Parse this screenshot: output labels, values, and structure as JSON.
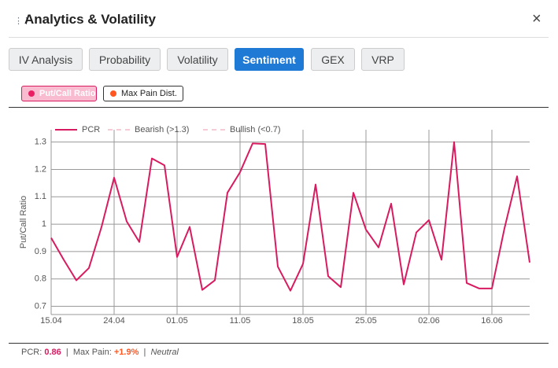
{
  "header": {
    "title": "Analytics & Volatility",
    "close": "×"
  },
  "tabs": [
    "IV Analysis",
    "Probability",
    "Volatility",
    "Sentiment",
    "GEX",
    "VRP"
  ],
  "active_tab": 3,
  "toggles": [
    {
      "label": "Put/Call Ratio",
      "color": "#e91e63",
      "active": true
    },
    {
      "label": "Max Pain Dist.",
      "color": "#ff5722",
      "active": false
    }
  ],
  "chart_data": {
    "type": "line",
    "y_label": "Put/Call Ratio",
    "categories": [
      "15.04",
      null,
      null,
      null,
      null,
      "24.04",
      null,
      null,
      null,
      null,
      "01.05",
      null,
      null,
      null,
      null,
      "11.05",
      null,
      null,
      null,
      null,
      "18.05",
      null,
      null,
      null,
      null,
      "25.05",
      null,
      null,
      null,
      null,
      "02.06",
      null,
      null,
      null,
      null,
      "16.06",
      null,
      null,
      null
    ],
    "series": [
      {
        "name": "PCR",
        "color": "#d81b60",
        "values": [
          0.95,
          0.87,
          0.795,
          0.84,
          0.99,
          1.17,
          1.01,
          0.935,
          1.24,
          1.215,
          0.88,
          0.99,
          0.76,
          0.795,
          1.115,
          1.19,
          1.295,
          1.293,
          0.845,
          0.757,
          0.855,
          1.145,
          0.81,
          0.77,
          1.115,
          0.98,
          0.915,
          1.075,
          0.78,
          0.97,
          1.015,
          0.87,
          1.3,
          0.785,
          0.765,
          0.765,
          0.985,
          1.175,
          0.86
        ]
      },
      {
        "name": "Bearish (>1.3)",
        "color": "#f6cbd6",
        "dash": true
      },
      {
        "name": "Bullish (<0.7)",
        "color": "#f6cbd6",
        "dash": true
      }
    ],
    "ylim": [
      0.67,
      1.345
    ],
    "yticks": [
      0.7,
      0.8,
      0.9,
      1,
      1.1,
      1.2,
      1.3
    ],
    "grid": true
  },
  "footer": {
    "pcr_label": "PCR:",
    "pcr_value": "0.86",
    "sep": "|",
    "max_pain_label": "Max Pain:",
    "max_pain_value": "+1.9%",
    "sentiment": "Neutral"
  }
}
